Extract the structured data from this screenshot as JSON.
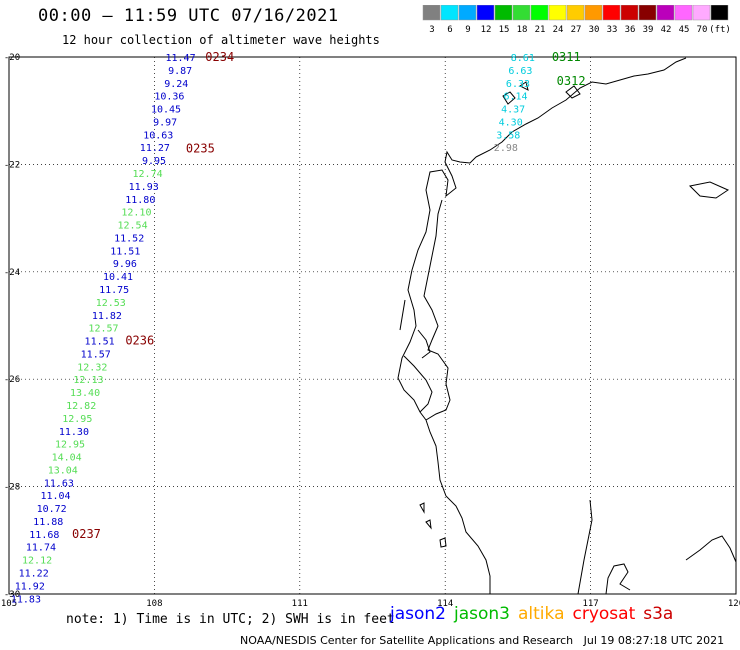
{
  "header": {
    "title": "00:00 – 11:59 UTC 07/16/2021",
    "subtitle": "12 hour collection of altimeter wave heights"
  },
  "legend": {
    "colors": [
      "#808080",
      "#00e5ff",
      "#00aaff",
      "#0000ff",
      "#00bb00",
      "#33dd33",
      "#00ff00",
      "#ffff00",
      "#ffcc00",
      "#ff9900",
      "#ff0000",
      "#cc0000",
      "#880000",
      "#bb00bb",
      "#ff66ff",
      "#ffaaff",
      "#000000"
    ],
    "labels": [
      "3",
      "6",
      "9",
      "12",
      "15",
      "18",
      "21",
      "24",
      "27",
      "30",
      "33",
      "36",
      "39",
      "42",
      "45",
      "70",
      "(ft)"
    ]
  },
  "axes": {
    "x_ticks": [
      "105",
      "108",
      "111",
      "114",
      "117",
      "120"
    ],
    "y_ticks": [
      "-20",
      "-22",
      "-24",
      "-26",
      "-28",
      "-30"
    ]
  },
  "tracks": [
    {
      "color": "#0000cc",
      "points": [
        {
          "lon": 108.85,
          "lat": -20.0,
          "v": "11.47",
          "c": "#0000cc"
        },
        {
          "lon": 108.78,
          "lat": -20.24,
          "v": "9.87",
          "c": "#0000cc"
        },
        {
          "lon": 108.7,
          "lat": -20.48,
          "v": "9.24",
          "c": "#0000cc"
        },
        {
          "lon": 108.62,
          "lat": -20.72,
          "v": "10.36",
          "c": "#0000cc"
        },
        {
          "lon": 108.55,
          "lat": -20.96,
          "v": "10.45",
          "c": "#0000cc"
        },
        {
          "lon": 108.47,
          "lat": -21.2,
          "v": "9.97",
          "c": "#0000cc"
        },
        {
          "lon": 108.39,
          "lat": -21.44,
          "v": "10.63",
          "c": "#0000cc"
        },
        {
          "lon": 108.32,
          "lat": -21.68,
          "v": "11.27",
          "c": "#0000cc"
        },
        {
          "lon": 108.24,
          "lat": -21.92,
          "v": "9.95",
          "c": "#0000cc"
        },
        {
          "lon": 108.17,
          "lat": -22.16,
          "v": "12.74",
          "c": "#55dd55"
        },
        {
          "lon": 108.09,
          "lat": -22.4,
          "v": "11.93",
          "c": "#0000cc"
        },
        {
          "lon": 108.02,
          "lat": -22.64,
          "v": "11.80",
          "c": "#0000cc"
        },
        {
          "lon": 107.94,
          "lat": -22.88,
          "v": "12.10",
          "c": "#55dd55"
        },
        {
          "lon": 107.86,
          "lat": -23.12,
          "v": "12.54",
          "c": "#55dd55"
        },
        {
          "lon": 107.79,
          "lat": -23.36,
          "v": "11.52",
          "c": "#0000cc"
        },
        {
          "lon": 107.71,
          "lat": -23.6,
          "v": "11.51",
          "c": "#0000cc"
        },
        {
          "lon": 107.64,
          "lat": -23.84,
          "v": "9.96",
          "c": "#0000cc"
        },
        {
          "lon": 107.56,
          "lat": -24.08,
          "v": "10.41",
          "c": "#0000cc"
        },
        {
          "lon": 107.48,
          "lat": -24.32,
          "v": "11.75",
          "c": "#0000cc"
        },
        {
          "lon": 107.41,
          "lat": -24.56,
          "v": "12.53",
          "c": "#55dd55"
        },
        {
          "lon": 107.33,
          "lat": -24.8,
          "v": "11.82",
          "c": "#0000cc"
        },
        {
          "lon": 107.26,
          "lat": -25.04,
          "v": "12.57",
          "c": "#55dd55"
        },
        {
          "lon": 107.18,
          "lat": -25.28,
          "v": "11.51",
          "c": "#0000cc"
        },
        {
          "lon": 107.1,
          "lat": -25.52,
          "v": "11.57",
          "c": "#0000cc"
        },
        {
          "lon": 107.03,
          "lat": -25.76,
          "v": "12.32",
          "c": "#55dd55"
        },
        {
          "lon": 106.95,
          "lat": -26.0,
          "v": "12.13",
          "c": "#55dd55"
        },
        {
          "lon": 106.88,
          "lat": -26.24,
          "v": "13.40",
          "c": "#55dd55"
        },
        {
          "lon": 106.8,
          "lat": -26.48,
          "v": "12.82",
          "c": "#55dd55"
        },
        {
          "lon": 106.72,
          "lat": -26.72,
          "v": "12.95",
          "c": "#55dd55"
        },
        {
          "lon": 106.65,
          "lat": -26.96,
          "v": "11.30",
          "c": "#0000cc"
        },
        {
          "lon": 106.57,
          "lat": -27.2,
          "v": "12.95",
          "c": "#55dd55"
        },
        {
          "lon": 106.5,
          "lat": -27.44,
          "v": "14.04",
          "c": "#55dd55"
        },
        {
          "lon": 106.42,
          "lat": -27.68,
          "v": "13.04",
          "c": "#55dd55"
        },
        {
          "lon": 106.34,
          "lat": -27.92,
          "v": "11.63",
          "c": "#0000cc"
        },
        {
          "lon": 106.27,
          "lat": -28.16,
          "v": "11.04",
          "c": "#0000cc"
        },
        {
          "lon": 106.19,
          "lat": -28.4,
          "v": "10.72",
          "c": "#0000cc"
        },
        {
          "lon": 106.12,
          "lat": -28.64,
          "v": "11.88",
          "c": "#0000cc"
        },
        {
          "lon": 106.04,
          "lat": -28.88,
          "v": "11.68",
          "c": "#0000cc"
        },
        {
          "lon": 105.97,
          "lat": -29.12,
          "v": "11.74",
          "c": "#0000cc"
        },
        {
          "lon": 105.89,
          "lat": -29.36,
          "v": "12.12",
          "c": "#55dd55"
        },
        {
          "lon": 105.82,
          "lat": -29.6,
          "v": "11.22",
          "c": "#0000cc"
        },
        {
          "lon": 105.74,
          "lat": -29.84,
          "v": "11.92",
          "c": "#0000cc"
        },
        {
          "lon": 105.66,
          "lat": -30.08,
          "v": "11.83",
          "c": "#0000cc"
        }
      ],
      "times": [
        {
          "lon": 109.05,
          "lat": -20.0,
          "t": "0234"
        },
        {
          "lon": 108.65,
          "lat": -21.7,
          "t": "0235"
        },
        {
          "lon": 107.4,
          "lat": -25.28,
          "t": "0236"
        },
        {
          "lon": 106.3,
          "lat": -28.88,
          "t": "0237"
        }
      ]
    },
    {
      "color": "#00ccdd",
      "points": [
        {
          "lon": 115.85,
          "lat": -20.0,
          "v": "8.61",
          "c": "#00ccdd"
        },
        {
          "lon": 115.8,
          "lat": -20.24,
          "v": "6.63",
          "c": "#00ccdd"
        },
        {
          "lon": 115.75,
          "lat": -20.48,
          "v": "6.33",
          "c": "#00ccdd"
        },
        {
          "lon": 115.7,
          "lat": -20.72,
          "v": "6.14",
          "c": "#00ccdd"
        },
        {
          "lon": 115.65,
          "lat": -20.96,
          "v": "4.37",
          "c": "#00ccdd"
        },
        {
          "lon": 115.6,
          "lat": -21.2,
          "v": "4.30",
          "c": "#00ccdd"
        },
        {
          "lon": 115.55,
          "lat": -21.44,
          "v": "3.58",
          "c": "#00ccdd"
        },
        {
          "lon": 115.5,
          "lat": -21.68,
          "v": "2.98",
          "c": "#888888"
        }
      ],
      "times": [
        {
          "lon": 116.2,
          "lat": -20.0,
          "t": "0311",
          "c": "#008800"
        },
        {
          "lon": 116.3,
          "lat": -20.45,
          "t": "0312",
          "c": "#008800"
        }
      ]
    }
  ],
  "footer": {
    "note": "note: 1) Time is in UTC; 2) SWH is in feet",
    "satellites": [
      {
        "name": "jason2",
        "color": "#0000ff"
      },
      {
        "name": "jason3",
        "color": "#00bb00"
      },
      {
        "name": "altika",
        "color": "#ffaa00"
      },
      {
        "name": "cryosat",
        "color": "#ff0000"
      },
      {
        "name": "s3a",
        "color": "#cc0000"
      }
    ],
    "credit": "NOAA/NESDIS Center for Satellite Applications and Research   Jul 19 08:27:18 UTC 2021"
  }
}
